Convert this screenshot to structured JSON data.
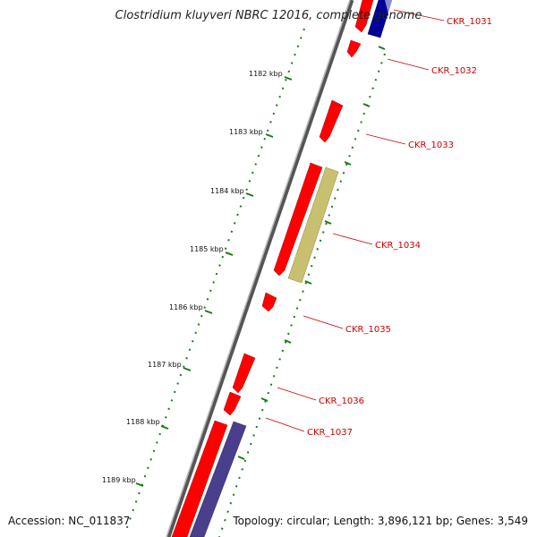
{
  "title": "Clostridium kluyveri NBRC 12016, complete genome",
  "accession": "Accession: NC_011837",
  "summary": "Topology: circular; Length: 3,896,121 bp; Genes: 3,549",
  "colors": {
    "backbone": "#808080",
    "gene_red": "#ff0000",
    "gene_olive": "#c8c070",
    "gene_navy": "#000099",
    "gene_slate": "#4a3f8c",
    "tick_green": "#1a7a1a",
    "label_red": "#cc0000"
  },
  "ticks": [
    "1182 kbp",
    "1183 kbp",
    "1184 kbp",
    "1185 kbp",
    "1186 kbp",
    "1187 kbp",
    "1188 kbp",
    "1189 kbp"
  ],
  "gene_labels": [
    "CKR_1031",
    "CKR_1032",
    "CKR_1033",
    "CKR_1034",
    "CKR_1035",
    "CKR_1036",
    "CKR_1037"
  ]
}
